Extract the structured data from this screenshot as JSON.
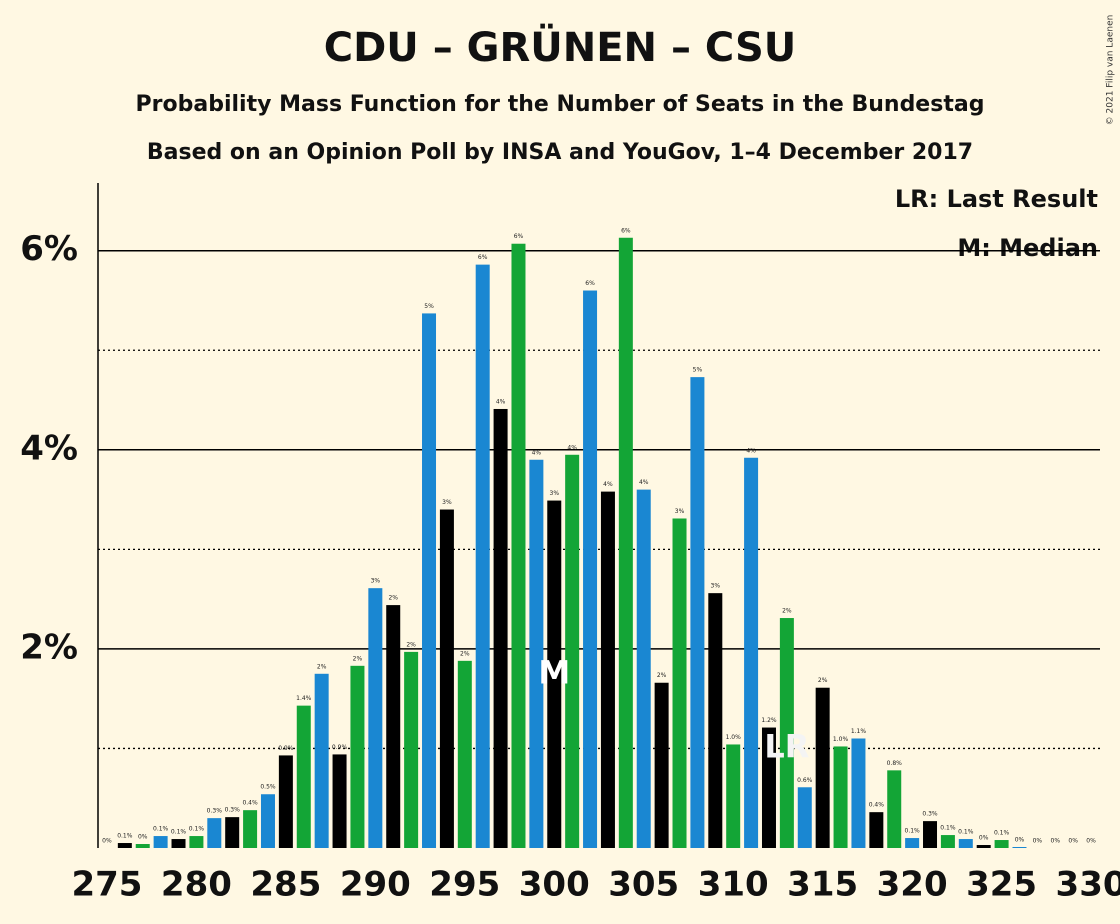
{
  "chart_data": {
    "type": "bar",
    "title": "CDU – GRÜNEN – CSU",
    "subtitle": "Probability Mass Function for the Number of Seats in the Bundestag",
    "subtitle2": "Based on an Opinion Poll by INSA and YouGov, 1–4 December 2017",
    "copyright": "© 2021 Filip van Laenen",
    "legend": [
      "LR: Last Result",
      "M: Median"
    ],
    "legend_position": "top-right",
    "x": [
      275,
      276,
      277,
      278,
      279,
      280,
      281,
      282,
      283,
      284,
      285,
      286,
      287,
      288,
      289,
      290,
      291,
      292,
      293,
      294,
      295,
      296,
      297,
      298,
      299,
      300,
      301,
      302,
      303,
      304,
      305,
      306,
      307,
      308,
      309,
      310,
      311,
      312,
      313,
      314,
      315,
      316,
      317,
      318,
      319,
      320,
      321,
      322,
      323,
      324,
      325,
      326,
      327,
      328,
      329,
      330
    ],
    "values": [
      0,
      0.05,
      0.04,
      0.12,
      0.09,
      0.12,
      0.3,
      0.31,
      0.38,
      0.54,
      0.93,
      1.43,
      1.75,
      0.94,
      1.83,
      2.61,
      2.44,
      1.97,
      5.37,
      3.4,
      1.88,
      5.86,
      4.41,
      6.07,
      3.9,
      3.49,
      3.95,
      5.6,
      3.58,
      6.13,
      3.6,
      1.66,
      3.31,
      4.73,
      2.56,
      1.04,
      3.92,
      1.21,
      2.31,
      0.61,
      1.61,
      1.02,
      1.1,
      0.36,
      0.78,
      0.1,
      0.27,
      0.13,
      0.09,
      0.03,
      0.08,
      0.01,
      0,
      0,
      0,
      0
    ],
    "value_labels": [
      "0%",
      "0.1%",
      "0%",
      "0.1%",
      "0.1%",
      "0.1%",
      "0.3%",
      "0.3%",
      "0.4%",
      "0.5%",
      "0.9%",
      "1.4%",
      "2%",
      "0.9%",
      "2%",
      "3%",
      "2%",
      "2%",
      "5%",
      "3%",
      "2%",
      "6%",
      "4%",
      "6%",
      "4%",
      "3%",
      "4%",
      "6%",
      "4%",
      "6%",
      "4%",
      "2%",
      "3%",
      "5%",
      "3%",
      "1.0%",
      "4%",
      "1.2%",
      "2%",
      "0.6%",
      "2%",
      "1.0%",
      "1.1%",
      "0.4%",
      "0.8%",
      "0.1%",
      "0.3%",
      "0.1%",
      "0.1%",
      "0%",
      "0.1%",
      "0%",
      "0%",
      "0%",
      "0%",
      "0%"
    ],
    "color_cycle": [
      "#1a87d2",
      "#000000",
      "#13a536"
    ],
    "annotations": [
      {
        "text": "M",
        "x": 300
      },
      {
        "text": "LR",
        "x": 313
      }
    ],
    "xlim": [
      274.5,
      330.5
    ],
    "xticks": [
      275,
      280,
      285,
      290,
      295,
      300,
      305,
      310,
      315,
      320,
      325,
      330
    ],
    "ylim": [
      0,
      6.68
    ],
    "yticks": [
      {
        "value": 2,
        "label": "2%"
      },
      {
        "value": 4,
        "label": "4%"
      },
      {
        "value": 6,
        "label": "6%"
      }
    ],
    "minor_yticks": [
      1,
      3,
      5
    ],
    "grid": true
  }
}
